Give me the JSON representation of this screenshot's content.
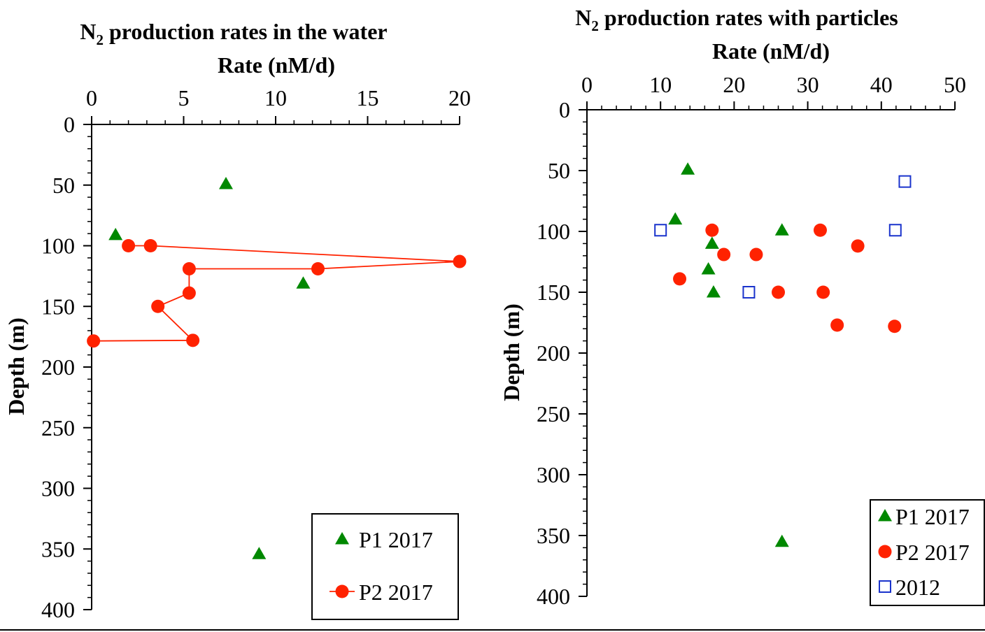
{
  "colors": {
    "p1": "#008800",
    "p2": "#ff2200",
    "y2012": "#1a33cc",
    "axis": "#000000"
  },
  "chart_data": [
    {
      "type": "scatter",
      "title": "N",
      "title_sub": "2",
      "title_rest": " production rates in the water",
      "xlabel": "Rate (nM/d)",
      "ylabel": "Depth (m)",
      "xlim": [
        0,
        20
      ],
      "ylim": [
        0,
        400
      ],
      "xticks": [
        "0",
        "5",
        "10",
        "15",
        "20"
      ],
      "yticks": [
        "0",
        "50",
        "100",
        "150",
        "200",
        "250",
        "300",
        "350",
        "400"
      ],
      "x_axis_position": "top",
      "y_inverted": true,
      "legend": "bottom-right",
      "series": [
        {
          "name": "P1 2017",
          "marker": "triangle",
          "line": false,
          "points": [
            [
              7.3,
              49
            ],
            [
              1.3,
              91
            ],
            [
              11.5,
              131
            ],
            [
              9.1,
              354
            ]
          ]
        },
        {
          "name": "P2 2017",
          "marker": "circle",
          "line": true,
          "points": [
            [
              2,
              100
            ],
            [
              3.2,
              100
            ],
            [
              20,
              113
            ],
            [
              12.3,
              119
            ],
            [
              5.3,
              119
            ],
            [
              5.3,
              139
            ],
            [
              3.6,
              150
            ],
            [
              5.5,
              178
            ],
            [
              0.1,
              178.5
            ]
          ]
        }
      ]
    },
    {
      "type": "scatter",
      "title": "N",
      "title_sub": "2",
      "title_rest": " production rates with particles",
      "xlabel": "Rate (nM/d)",
      "ylabel": "Depth (m)",
      "xlim": [
        0,
        50
      ],
      "ylim": [
        0,
        400
      ],
      "xticks": [
        "0",
        "10",
        "20",
        "30",
        "40",
        "50"
      ],
      "yticks": [
        "0",
        "50",
        "100",
        "150",
        "200",
        "250",
        "300",
        "350",
        "400"
      ],
      "x_axis_position": "top",
      "y_inverted": true,
      "legend": "bottom-right",
      "series": [
        {
          "name": "P1 2017",
          "marker": "triangle",
          "line": false,
          "points": [
            [
              13.7,
              49
            ],
            [
              12,
              90
            ],
            [
              17,
              110
            ],
            [
              26.5,
              99
            ],
            [
              16.5,
              131
            ],
            [
              17.2,
              150
            ],
            [
              26.5,
              355
            ]
          ]
        },
        {
          "name": "P2 2017",
          "marker": "circle",
          "line": false,
          "points": [
            [
              17,
              99
            ],
            [
              31.7,
              99
            ],
            [
              36.8,
              112
            ],
            [
              18.6,
              119
            ],
            [
              23,
              119
            ],
            [
              12.6,
              139
            ],
            [
              26,
              150
            ],
            [
              32.1,
              150
            ],
            [
              34,
              177
            ],
            [
              41.8,
              178
            ]
          ]
        },
        {
          "name": "2012",
          "marker": "square",
          "line": false,
          "points": [
            [
              43.2,
              59
            ],
            [
              10,
              99
            ],
            [
              41.9,
              99
            ],
            [
              22,
              150
            ]
          ]
        }
      ]
    }
  ]
}
